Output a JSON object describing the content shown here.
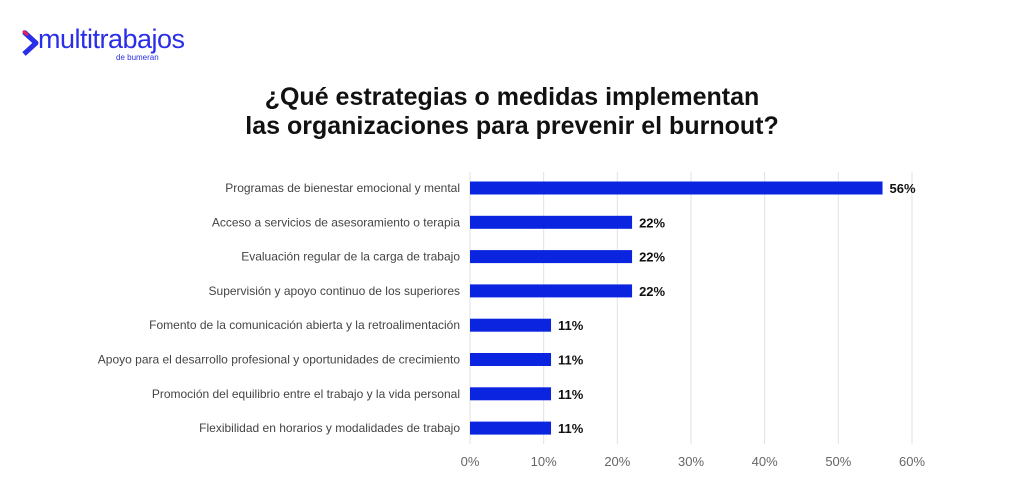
{
  "logo": {
    "name": "multitrabajos",
    "sub": "de bumeran",
    "colors": {
      "main": "#2a2ee8",
      "accent1": "#e8205a",
      "accent2": "#22d4d4"
    }
  },
  "chart_data": {
    "type": "bar",
    "orientation": "horizontal",
    "title_lines": [
      "¿Qué estrategias o medidas implementan",
      "las organizaciones para prevenir el burnout?"
    ],
    "categories": [
      "Programas de bienestar emocional y mental",
      "Acceso a servicios de asesoramiento o terapia",
      "Evaluación regular de la carga de trabajo",
      "Supervisión y apoyo continuo de los superiores",
      "Fomento de la comunicación abierta y la retroalimentación",
      "Apoyo para el desarrollo profesional y oportunidades de crecimiento",
      "Promoción del equilibrio entre el trabajo y la vida personal",
      "Flexibilidad en horarios y modalidades de trabajo"
    ],
    "values": [
      56,
      22,
      22,
      22,
      11,
      11,
      11,
      11
    ],
    "data_labels": [
      "56%",
      "22%",
      "22%",
      "22%",
      "11%",
      "11%",
      "11%",
      "11%"
    ],
    "xlim": [
      0,
      60
    ],
    "x_ticks": [
      0,
      10,
      20,
      30,
      40,
      50,
      60
    ],
    "x_tick_labels": [
      "0%",
      "10%",
      "20%",
      "30%",
      "40%",
      "50%",
      "60%"
    ],
    "grid": true,
    "bar_color": "#0a24e0",
    "xlabel": "",
    "ylabel": ""
  }
}
